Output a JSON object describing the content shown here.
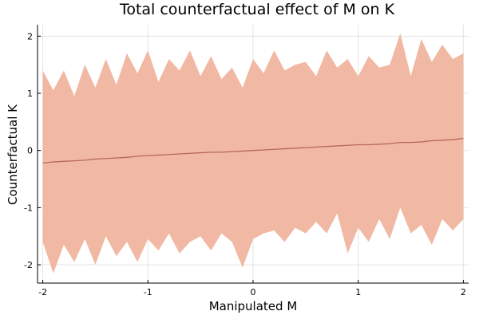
{
  "chart_data": {
    "type": "area",
    "title": "Total counterfactual effect of M on K",
    "xlabel": "Manipulated M",
    "ylabel": "Counterfactual K",
    "xlim": [
      -2.05,
      2.05
    ],
    "ylim": [
      -2.32,
      2.2
    ],
    "xticks": [
      -2,
      -1,
      0,
      1,
      2
    ],
    "xtick_labels": [
      "-2",
      "-1",
      "0",
      "1",
      "2"
    ],
    "yticks": [
      -2,
      -1,
      0,
      1,
      2
    ],
    "ytick_labels": [
      "-2",
      "-1",
      "0",
      "1",
      "2"
    ],
    "grid": true,
    "legend": "none",
    "colors": {
      "band": "#f1b8a4",
      "line": "#b46a59"
    },
    "x": [
      -2.0,
      -1.9,
      -1.8,
      -1.7,
      -1.6,
      -1.5,
      -1.4,
      -1.3,
      -1.2,
      -1.1,
      -1.0,
      -0.9,
      -0.8,
      -0.7,
      -0.6,
      -0.5,
      -0.4,
      -0.3,
      -0.2,
      -0.1,
      0.0,
      0.1,
      0.2,
      0.3,
      0.4,
      0.5,
      0.6,
      0.7,
      0.8,
      0.9,
      1.0,
      1.1,
      1.2,
      1.3,
      1.4,
      1.5,
      1.6,
      1.7,
      1.8,
      1.9,
      2.0
    ],
    "series": [
      {
        "values": [
          -0.22,
          -0.2,
          -0.19,
          -0.18,
          -0.17,
          -0.15,
          -0.14,
          -0.13,
          -0.12,
          -0.1,
          -0.09,
          -0.08,
          -0.07,
          -0.06,
          -0.05,
          -0.04,
          -0.03,
          -0.03,
          -0.02,
          -0.01,
          0.0,
          0.01,
          0.02,
          0.03,
          0.04,
          0.05,
          0.06,
          0.07,
          0.08,
          0.09,
          0.1,
          0.1,
          0.11,
          0.12,
          0.14,
          0.14,
          0.15,
          0.17,
          0.18,
          0.19,
          0.21
        ],
        "lower": [
          -1.6,
          -2.15,
          -1.65,
          -1.95,
          -1.55,
          -2.0,
          -1.5,
          -1.85,
          -1.6,
          -1.95,
          -1.55,
          -1.75,
          -1.45,
          -1.8,
          -1.6,
          -1.5,
          -1.75,
          -1.45,
          -1.6,
          -2.05,
          -1.55,
          -1.45,
          -1.4,
          -1.6,
          -1.35,
          -1.45,
          -1.25,
          -1.45,
          -1.1,
          -1.8,
          -1.35,
          -1.6,
          -1.2,
          -1.55,
          -1.0,
          -1.45,
          -1.3,
          -1.65,
          -1.2,
          -1.4,
          -1.2
        ],
        "upper": [
          1.4,
          1.05,
          1.4,
          0.95,
          1.5,
          1.1,
          1.6,
          1.15,
          1.7,
          1.35,
          1.75,
          1.2,
          1.6,
          1.4,
          1.75,
          1.3,
          1.65,
          1.25,
          1.45,
          1.1,
          1.6,
          1.35,
          1.75,
          1.4,
          1.5,
          1.55,
          1.3,
          1.75,
          1.45,
          1.6,
          1.3,
          1.65,
          1.45,
          1.5,
          2.05,
          1.3,
          1.95,
          1.55,
          1.85,
          1.6,
          1.7
        ]
      }
    ]
  }
}
